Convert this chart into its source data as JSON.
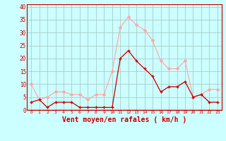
{
  "hours": [
    0,
    1,
    2,
    3,
    4,
    5,
    6,
    7,
    8,
    9,
    10,
    11,
    12,
    13,
    14,
    15,
    16,
    17,
    18,
    19,
    20,
    21,
    22,
    23
  ],
  "wind_avg": [
    3,
    4,
    1,
    3,
    3,
    3,
    1,
    1,
    1,
    1,
    1,
    20,
    23,
    19,
    16,
    13,
    7,
    9,
    9,
    11,
    5,
    6,
    3,
    3
  ],
  "wind_gust": [
    10,
    4,
    5,
    7,
    7,
    6,
    6,
    4,
    6,
    6,
    15,
    32,
    36,
    33,
    31,
    27,
    19,
    16,
    16,
    19,
    5,
    6,
    8,
    8
  ],
  "color_avg": "#cc0000",
  "color_gust": "#ffaaaa",
  "background": "#ccffff",
  "grid_color": "#aacccc",
  "ylim": [
    0,
    41
  ],
  "yticks": [
    0,
    5,
    10,
    15,
    20,
    25,
    30,
    35,
    40
  ],
  "xlabel": "Vent moyen/en rafales ( km/h )",
  "xlabel_color": "#cc0000",
  "tick_color": "#cc0000",
  "spine_color": "#cc0000"
}
